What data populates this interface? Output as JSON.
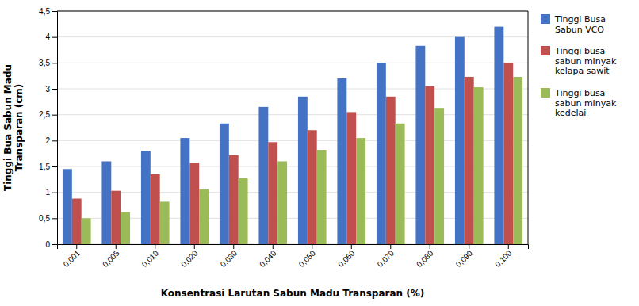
{
  "chart_data": {
    "type": "bar",
    "categories": [
      "0,001",
      "0,005",
      "0,010",
      "0,020",
      "0,030",
      "0,040",
      "0,050",
      "0,060",
      "0,070",
      "0,080",
      "0,090",
      "0,100"
    ],
    "series": [
      {
        "name": "Tinggi Busa\nSabun VCO",
        "color": "#4472C4",
        "values": [
          1.45,
          1.6,
          1.8,
          2.05,
          2.33,
          2.65,
          2.85,
          3.2,
          3.5,
          3.83,
          4.0,
          4.2
        ]
      },
      {
        "name": "Tinggi busa\nsabun minyak\nkelapa sawit",
        "color": "#C0504D",
        "values": [
          0.88,
          1.03,
          1.35,
          1.57,
          1.72,
          1.97,
          2.2,
          2.55,
          2.85,
          3.05,
          3.23,
          3.5
        ]
      },
      {
        "name": "Tinggi busa\nsabun minyak\nkedelai",
        "color": "#9BBB59",
        "values": [
          0.5,
          0.62,
          0.82,
          1.06,
          1.27,
          1.6,
          1.82,
          2.05,
          2.33,
          2.63,
          3.03,
          3.23
        ]
      }
    ],
    "ylabel": "Tinggi Bua Sabun Madu\nTransparan (cm)",
    "xlabel": "Konsentrasi Larutan Sabun Madu Transparan (%)",
    "ylim": [
      0,
      4.5
    ],
    "yticks": [
      0,
      {
        "value": 0.5,
        "label": "0,5"
      },
      1,
      {
        "value": 1.5,
        "label": "1,5"
      },
      2,
      {
        "value": 2.5,
        "label": "2,5"
      },
      3,
      {
        "value": 3.5,
        "label": "3,5"
      },
      4,
      {
        "value": 4.5,
        "label": "4,5"
      }
    ],
    "grid": true,
    "legend": "right"
  }
}
